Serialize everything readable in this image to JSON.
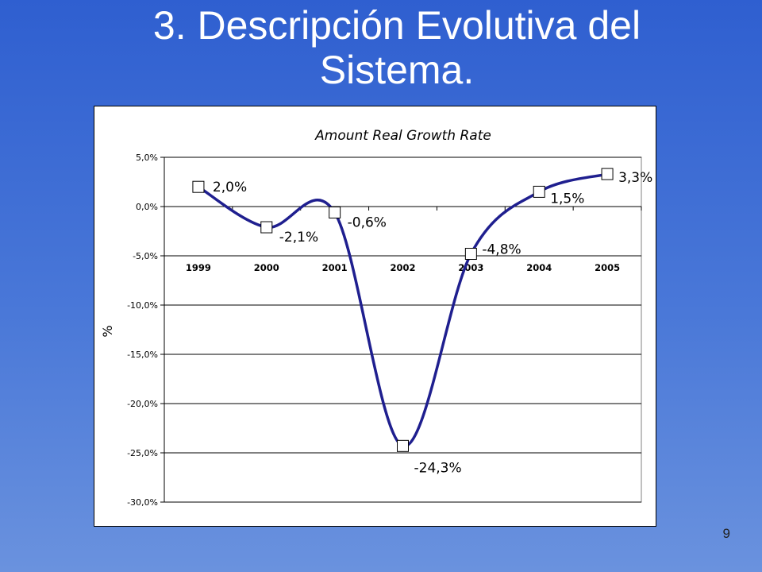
{
  "slide": {
    "title_line1": "3. Descripción Evolutiva del",
    "title_line2": "Sistema.",
    "page_number": "9"
  },
  "chart_data": {
    "type": "line",
    "title": "Amount Real Growth Rate",
    "xlabel": "",
    "ylabel": "%",
    "categories": [
      "1999",
      "2000",
      "2001",
      "2002",
      "2003",
      "2004",
      "2005"
    ],
    "series": [
      {
        "values": [
          2.0,
          -2.1,
          -0.6,
          -24.3,
          -4.8,
          1.5,
          3.3
        ],
        "color": "#1f1f8f"
      }
    ],
    "data_labels": [
      "2,0%",
      "-2,1%",
      "-0,6%",
      "-24,3%",
      "-4,8%",
      "1,5%",
      "3,3%"
    ],
    "ylim": [
      -30,
      5
    ],
    "yticks": [
      5,
      0,
      -5,
      -10,
      -15,
      -20,
      -25,
      -30
    ],
    "ytick_labels": [
      "5,0%",
      "0,0%",
      "-5,0%",
      "-10,0%",
      "-15,0%",
      "-20,0%",
      "-25,0%",
      "-30,0%"
    ],
    "grid": true,
    "legend": "none",
    "marker": "square-open",
    "smooth": true
  }
}
